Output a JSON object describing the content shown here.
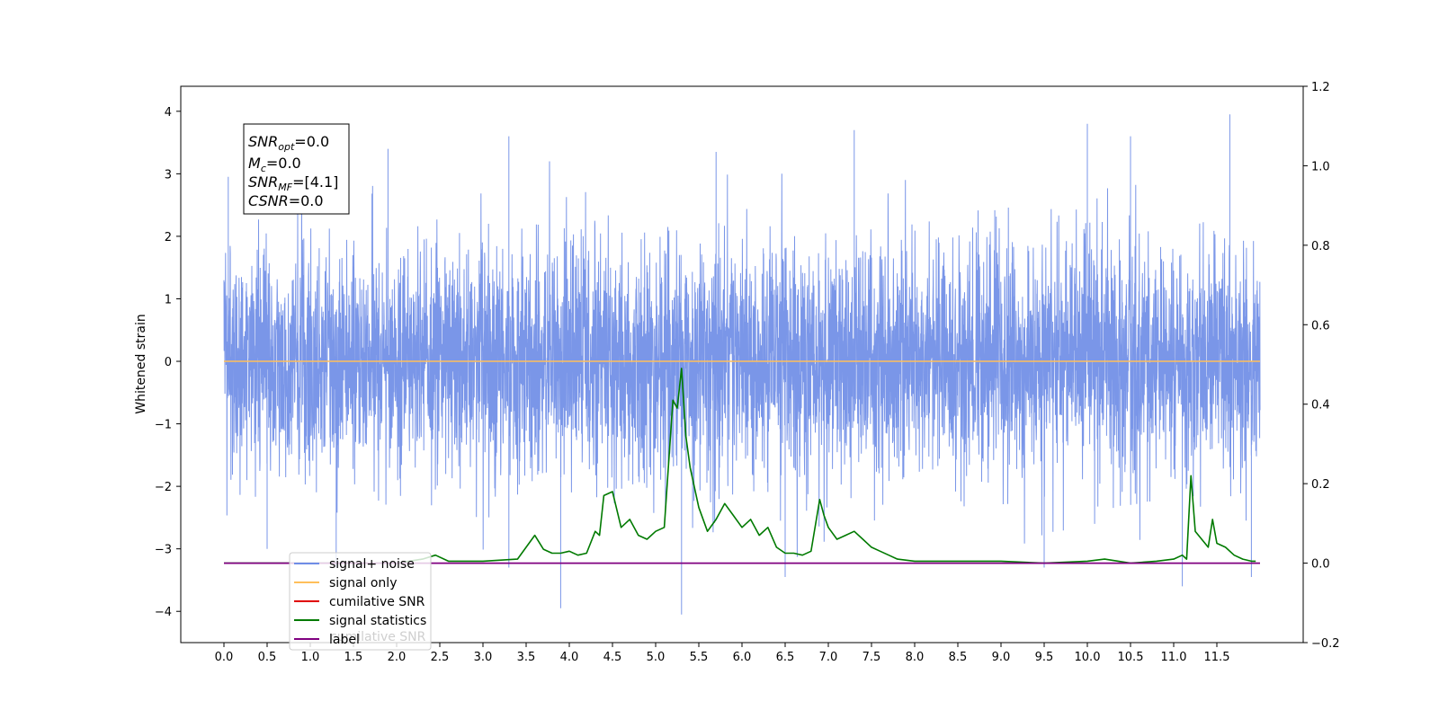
{
  "chart_data": {
    "type": "line",
    "title": "",
    "xlabel": "",
    "ylabel": "Whitened strain",
    "xlim": [
      -0.5,
      12.5
    ],
    "ylim": [
      -4.5,
      4.4
    ],
    "y2lim": [
      -0.2,
      1.2
    ],
    "x_ticks": [
      "0.0",
      "0.5",
      "1.0",
      "1.5",
      "2.0",
      "2.5",
      "3.0",
      "3.5",
      "4.0",
      "4.5",
      "5.0",
      "5.5",
      "6.0",
      "6.5",
      "7.0",
      "7.5",
      "8.0",
      "8.5",
      "9.0",
      "9.5",
      "10.0",
      "10.5",
      "11.0",
      "11.5"
    ],
    "y_ticks": [
      "4",
      "3",
      "2",
      "1",
      "0",
      "−1",
      "−2",
      "−3",
      "−4"
    ],
    "y2_ticks": [
      "1.2",
      "1.0",
      "0.8",
      "0.6",
      "0.4",
      "0.2",
      "0.0",
      "−0.2"
    ],
    "grid": false,
    "legend_position": "lower-left",
    "colors": {
      "noise": "#6f8de6",
      "signal": "#ffbf5a",
      "cumulative": "#e00000",
      "statistics": "#007a00",
      "label": "#800080"
    },
    "series": [
      {
        "name": "signal+ noise",
        "axis": "left",
        "x_range": [
          0.0,
          12.0
        ],
        "envelope_peaks": [
          {
            "x": 0.05,
            "y": 2.95
          },
          {
            "x": 1.9,
            "y": 3.4
          },
          {
            "x": 3.3,
            "y": 3.6
          },
          {
            "x": 5.7,
            "y": 3.35
          },
          {
            "x": 7.3,
            "y": 3.7
          },
          {
            "x": 10.0,
            "y": 3.8
          },
          {
            "x": 10.5,
            "y": 3.6
          },
          {
            "x": 11.65,
            "y": 3.95
          }
        ],
        "envelope_troughs": [
          {
            "x": 0.5,
            "y": -3.0
          },
          {
            "x": 1.3,
            "y": -3.3
          },
          {
            "x": 3.3,
            "y": -3.3
          },
          {
            "x": 3.9,
            "y": -3.95
          },
          {
            "x": 5.3,
            "y": -4.05
          },
          {
            "x": 6.5,
            "y": -3.45
          },
          {
            "x": 9.5,
            "y": -3.3
          },
          {
            "x": 11.1,
            "y": -3.6
          },
          {
            "x": 11.9,
            "y": -3.45
          }
        ]
      },
      {
        "name": "signal only",
        "axis": "left",
        "x": [
          0.0,
          12.0
        ],
        "values": [
          0.0,
          0.0
        ]
      },
      {
        "name": "cumilative SNR",
        "axis": "right",
        "x": [],
        "values": []
      },
      {
        "name": "signal statistics",
        "axis": "right",
        "x": [
          0.0,
          0.5,
          1.0,
          1.5,
          2.0,
          2.3,
          2.45,
          2.6,
          3.0,
          3.4,
          3.5,
          3.6,
          3.7,
          3.8,
          3.9,
          4.0,
          4.1,
          4.2,
          4.3,
          4.35,
          4.4,
          4.5,
          4.6,
          4.7,
          4.8,
          4.9,
          5.0,
          5.1,
          5.2,
          5.25,
          5.3,
          5.35,
          5.4,
          5.5,
          5.6,
          5.7,
          5.8,
          5.9,
          6.0,
          6.1,
          6.2,
          6.3,
          6.4,
          6.5,
          6.6,
          6.7,
          6.8,
          6.9,
          6.95,
          7.0,
          7.1,
          7.2,
          7.3,
          7.4,
          7.5,
          7.6,
          7.7,
          7.8,
          8.0,
          8.5,
          9.0,
          9.5,
          10.0,
          10.2,
          10.5,
          10.8,
          11.0,
          11.1,
          11.15,
          11.2,
          11.25,
          11.4,
          11.45,
          11.5,
          11.6,
          11.7,
          11.8,
          11.9,
          11.95
        ],
        "values": [
          0.0,
          0.0,
          0.0,
          0.0,
          0.0,
          0.01,
          0.02,
          0.005,
          0.005,
          0.01,
          0.04,
          0.07,
          0.035,
          0.025,
          0.025,
          0.03,
          0.02,
          0.025,
          0.08,
          0.07,
          0.17,
          0.18,
          0.09,
          0.11,
          0.07,
          0.06,
          0.08,
          0.09,
          0.41,
          0.39,
          0.49,
          0.32,
          0.24,
          0.14,
          0.08,
          0.11,
          0.15,
          0.12,
          0.09,
          0.11,
          0.07,
          0.09,
          0.04,
          0.025,
          0.025,
          0.02,
          0.03,
          0.16,
          0.12,
          0.09,
          0.06,
          0.07,
          0.08,
          0.06,
          0.04,
          0.03,
          0.02,
          0.01,
          0.005,
          0.005,
          0.005,
          0.0,
          0.005,
          0.01,
          0.0,
          0.005,
          0.01,
          0.02,
          0.01,
          0.22,
          0.08,
          0.04,
          0.11,
          0.05,
          0.04,
          0.02,
          0.01,
          0.005,
          0.005
        ]
      },
      {
        "name": "label",
        "axis": "right",
        "x": [
          0.0,
          12.0
        ],
        "values": [
          0.0,
          0.0
        ]
      }
    ],
    "legend_ghost_label": "cumilative SNR",
    "info_box": {
      "snr_opt_base": "SNR",
      "snr_opt_sub": "opt",
      "snr_opt_value": "=0.0",
      "mc_base": "M",
      "mc_sub": "c",
      "mc_value": "=0.0",
      "snr_mf_base": "SNR",
      "snr_mf_sub": "MF",
      "snr_mf_value": "=[4.1]",
      "csnr_base": "CSNR",
      "csnr_value": "=0.0"
    }
  }
}
